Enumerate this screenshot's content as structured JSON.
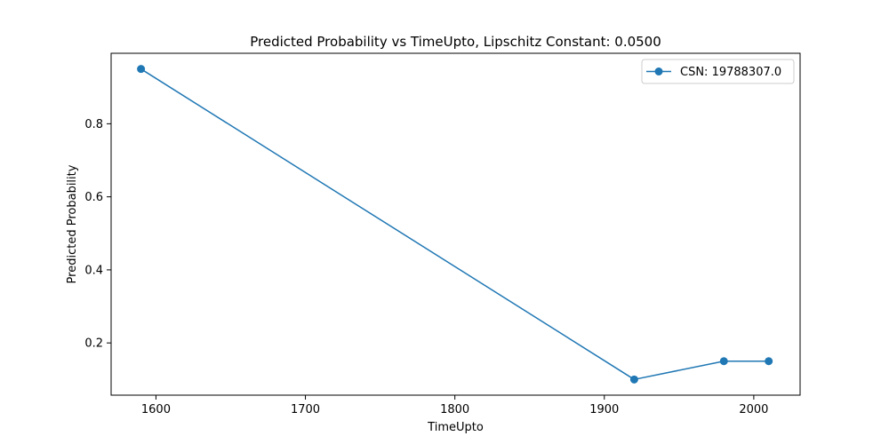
{
  "chart_data": {
    "type": "line",
    "title": "Predicted Probability vs TimeUpto, Lipschitz Constant: 0.0500",
    "xlabel": "TimeUpto",
    "ylabel": "Predicted Probability",
    "xlim": [
      1570,
      2031
    ],
    "ylim": [
      0.057,
      0.993
    ],
    "x_ticks": [
      1600,
      1700,
      1800,
      1900,
      2000
    ],
    "y_ticks": [
      0.2,
      0.4,
      0.6,
      0.8
    ],
    "x_tick_labels": [
      "1600",
      "1700",
      "1800",
      "1900",
      "2000"
    ],
    "y_tick_labels": [
      "0.2",
      "0.4",
      "0.6",
      "0.8"
    ],
    "grid": false,
    "legend_position": "top-right",
    "series": [
      {
        "name": "CSN: 19788307.0",
        "color": "#1f77b4",
        "marker": "circle",
        "x": [
          1590,
          1920,
          1980,
          2010
        ],
        "y": [
          0.95,
          0.1,
          0.15,
          0.15
        ]
      }
    ]
  }
}
